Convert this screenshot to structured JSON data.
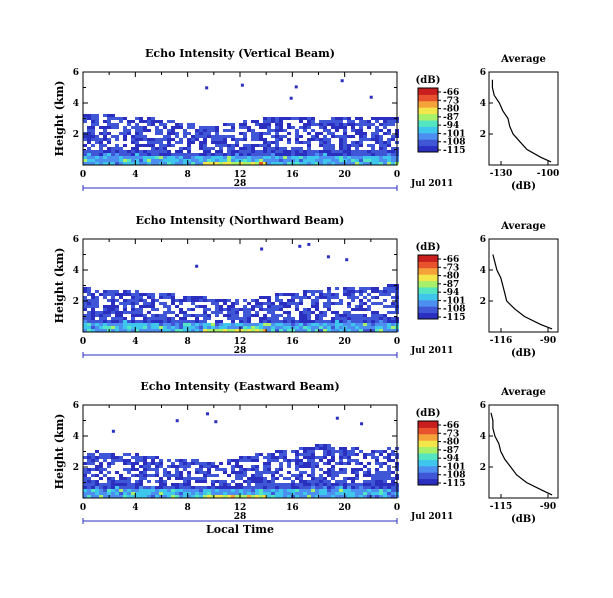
{
  "xaxis": {
    "ticks": [
      "0",
      "4",
      "8",
      "12",
      "16",
      "20",
      "0"
    ],
    "day": "28",
    "month_year": "Jul 2011",
    "label": "Local Time"
  },
  "yaxis": {
    "label": "Height (km)",
    "ticks": [
      "2",
      "4",
      "6"
    ]
  },
  "colorbar": {
    "unit": "(dB)",
    "ticks": [
      "-66",
      "-73",
      "-80",
      "-87",
      "-94",
      "-101",
      "-108",
      "-115"
    ],
    "colors": [
      "#2b2fbf",
      "#3f56d6",
      "#4c8ff0",
      "#3ec6ec",
      "#54e6c0",
      "#a6f06a",
      "#f3e64a",
      "#f6a23a",
      "#e8532e",
      "#c81e1e"
    ]
  },
  "panels": [
    {
      "title": "Echo Intensity (Vertical Beam)",
      "avg_title": "Average",
      "avg_xticks": [
        "-130",
        "-100"
      ],
      "avg_xlabel": "(dB)"
    },
    {
      "title": "Echo Intensity (Northward Beam)",
      "avg_title": "Average",
      "avg_xticks": [
        "-116",
        "-90"
      ],
      "avg_xlabel": "(dB)"
    },
    {
      "title": "Echo Intensity (Eastward Beam)",
      "avg_title": "Average",
      "avg_xticks": [
        "-115",
        "-90"
      ],
      "avg_xlabel": "(dB)"
    }
  ],
  "chart_data": [
    {
      "type": "heatmap",
      "title": "Echo Intensity (Vertical Beam)",
      "xlabel": "",
      "ylabel": "Height (km)",
      "xlim": [
        0,
        24
      ],
      "ylim": [
        0,
        6
      ],
      "colorbar_range_db": [
        -115,
        -66
      ],
      "echo_top_km": {
        "x": [
          0,
          4,
          8,
          10,
          12,
          14,
          16,
          18,
          20,
          22,
          24
        ],
        "y": [
          3.2,
          3.1,
          2.6,
          2.5,
          2.8,
          3.0,
          3.1,
          2.9,
          3.0,
          3.0,
          3.1
        ]
      },
      "avg_profile": {
        "type": "line",
        "xlim": [
          -130,
          -90
        ],
        "ylim": [
          0,
          6
        ],
        "height_km": [
          0.2,
          0.5,
          1.0,
          1.5,
          2.0,
          2.5,
          3.0,
          3.5,
          4.0,
          4.5,
          5.0,
          5.5
        ],
        "db": [
          -94,
          -100,
          -108,
          -112,
          -116,
          -118,
          -119,
          -122,
          -124,
          -127,
          -128,
          -128
        ]
      }
    },
    {
      "type": "heatmap",
      "title": "Echo Intensity (Northward Beam)",
      "xlabel": "",
      "ylabel": "Height (km)",
      "xlim": [
        0,
        24
      ],
      "ylim": [
        0,
        6
      ],
      "colorbar_range_db": [
        -115,
        -66
      ],
      "echo_top_km": {
        "x": [
          0,
          4,
          8,
          10,
          12,
          14,
          16,
          18,
          20,
          22,
          24
        ],
        "y": [
          2.8,
          2.6,
          2.3,
          2.1,
          2.0,
          2.3,
          2.5,
          2.7,
          2.9,
          2.9,
          3.0
        ]
      },
      "avg_profile": {
        "type": "line",
        "xlim": [
          -120,
          -85
        ],
        "ylim": [
          0,
          6
        ],
        "height_km": [
          0.2,
          0.5,
          1.0,
          1.5,
          2.0,
          2.5,
          3.0,
          3.5,
          4.0,
          4.5,
          5.0
        ],
        "db": [
          -88,
          -94,
          -102,
          -107,
          -111,
          -112,
          -113,
          -114,
          -116,
          -117,
          -118
        ]
      }
    },
    {
      "type": "heatmap",
      "title": "Echo Intensity (Eastward Beam)",
      "xlabel": "Local Time",
      "ylabel": "Height (km)",
      "xlim": [
        0,
        24
      ],
      "ylim": [
        0,
        6
      ],
      "colorbar_range_db": [
        -115,
        -66
      ],
      "echo_top_km": {
        "x": [
          0,
          4,
          8,
          10,
          12,
          14,
          16,
          18,
          20,
          22,
          24
        ],
        "y": [
          3.0,
          2.8,
          2.4,
          2.3,
          2.6,
          2.9,
          3.1,
          3.4,
          3.2,
          3.1,
          3.2
        ]
      },
      "avg_profile": {
        "type": "line",
        "xlim": [
          -120,
          -85
        ],
        "ylim": [
          0,
          6
        ],
        "height_km": [
          0.2,
          0.5,
          1.0,
          1.5,
          2.0,
          2.5,
          3.0,
          3.5,
          4.0,
          4.5,
          5.0,
          5.5
        ],
        "db": [
          -88,
          -93,
          -101,
          -106,
          -109,
          -112,
          -114,
          -115,
          -117,
          -118,
          -118,
          -119
        ]
      }
    }
  ]
}
